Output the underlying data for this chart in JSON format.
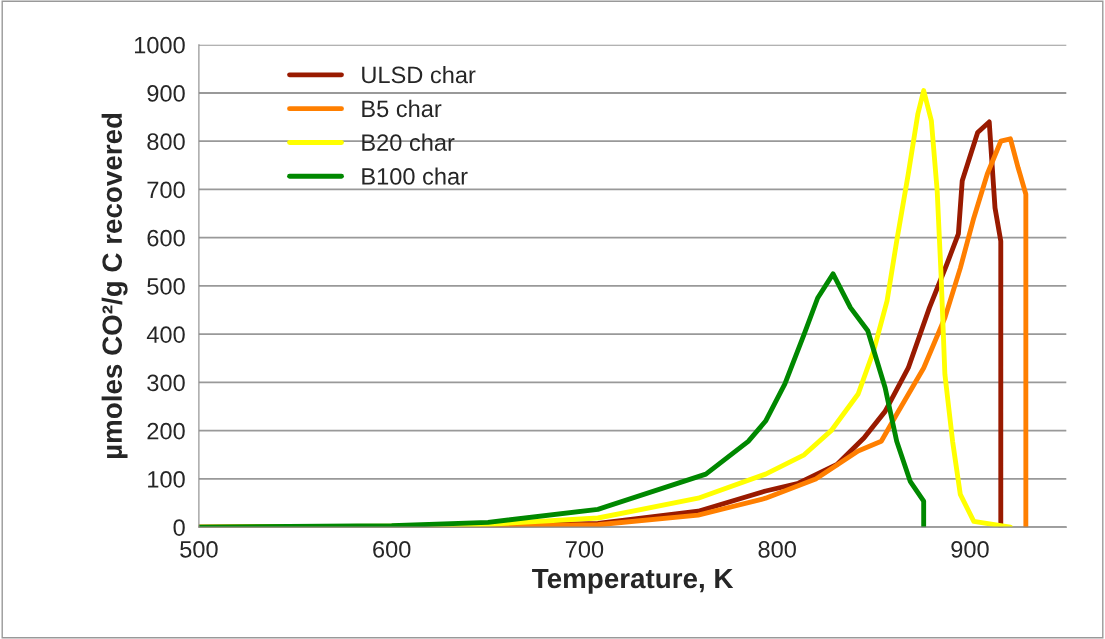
{
  "chart_data": {
    "type": "line",
    "xlabel": "Temperature, K",
    "ylabel": "µmoles CO²/g C recovered",
    "xlim": [
      500,
      950
    ],
    "xticks": [
      500,
      600,
      700,
      800,
      900
    ],
    "ylim": [
      0,
      1000
    ],
    "yticks": [
      0,
      100,
      200,
      300,
      400,
      500,
      600,
      700,
      800,
      900,
      1000
    ],
    "grid": "y",
    "legend": "top left",
    "marker": "none",
    "line_style": "solid",
    "series": [
      {
        "name": "ULSD char",
        "color": "#991a00",
        "x": [
          500,
          600,
          650,
          707,
          759,
          794,
          811,
          831,
          845,
          856,
          868,
          879,
          888,
          894,
          896,
          904,
          910,
          913,
          916,
          916
        ],
        "values": [
          0,
          1,
          3,
          8,
          33,
          75,
          91,
          130,
          185,
          240,
          330,
          455,
          545,
          608,
          718,
          818,
          840,
          662,
          593,
          0
        ]
      },
      {
        "name": "B5 char",
        "color": "#ff7f00",
        "x": [
          500,
          600,
          650,
          707,
          759,
          794,
          820,
          842,
          854,
          862,
          876,
          887,
          895,
          902,
          909,
          916,
          921,
          925,
          929,
          929
        ],
        "values": [
          0,
          1,
          2,
          5,
          25,
          60,
          100,
          158,
          178,
          234,
          330,
          434,
          537,
          641,
          732,
          800,
          805,
          745,
          690,
          0
        ]
      },
      {
        "name": "B20 char",
        "color": "#ffff00",
        "x": [
          500,
          600,
          650,
          707,
          759,
          794,
          814,
          828,
          842,
          850,
          857,
          862,
          868,
          873,
          876,
          880,
          883,
          885,
          887,
          891,
          895,
          902,
          921
        ],
        "values": [
          0,
          2,
          6,
          19,
          60,
          110,
          150,
          200,
          276,
          365,
          469,
          593,
          732,
          857,
          905,
          842,
          697,
          525,
          317,
          178,
          68,
          12,
          0
        ]
      },
      {
        "name": "B100 char",
        "color": "#008800",
        "x": [
          500,
          600,
          650,
          707,
          763,
          785,
          794,
          804,
          814,
          821,
          829,
          838,
          847,
          856,
          862,
          869,
          876,
          876
        ],
        "values": [
          0,
          3,
          10,
          37,
          110,
          178,
          220,
          297,
          400,
          475,
          525,
          455,
          407,
          289,
          178,
          95,
          54,
          0
        ]
      }
    ]
  }
}
